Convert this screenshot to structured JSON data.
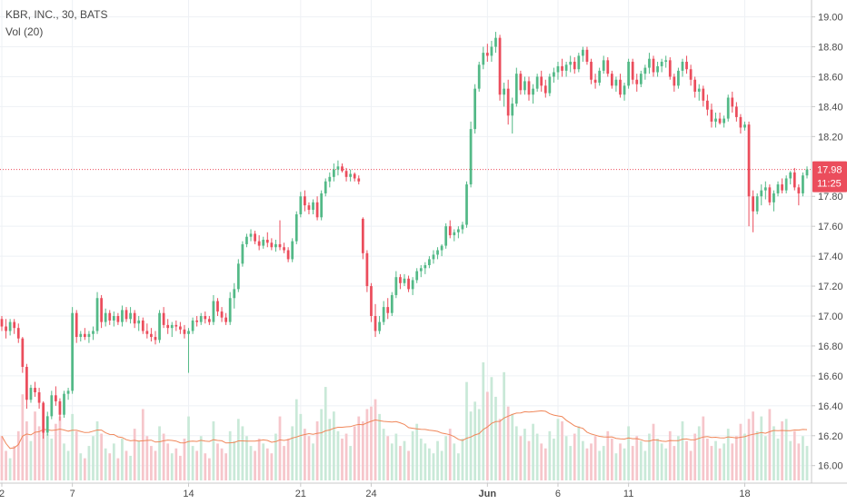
{
  "chart_data": {
    "type": "candlestick",
    "symbol_line": "KBR, INC., 30, BATS",
    "volume_label": "Vol (20)",
    "y_ticks": [
      "19.00",
      "18.80",
      "18.60",
      "18.40",
      "18.20",
      "17.80",
      "17.60",
      "17.40",
      "17.20",
      "17.00",
      "16.80",
      "16.60",
      "16.40",
      "16.20",
      "16.00"
    ],
    "ylim": [
      15.98,
      19.04
    ],
    "x_labels": [
      {
        "label": "2",
        "bar": 0
      },
      {
        "label": "7",
        "bar": 17
      },
      {
        "label": "14",
        "bar": 45
      },
      {
        "label": "21",
        "bar": 72
      },
      {
        "label": "24",
        "bar": 89
      },
      {
        "label": "Jun",
        "bar": 117
      },
      {
        "label": "6",
        "bar": 134
      },
      {
        "label": "11",
        "bar": 151
      },
      {
        "label": "18",
        "bar": 179
      }
    ],
    "last_price": {
      "value": 17.98,
      "label": "17.98",
      "countdown": "11:25"
    },
    "colors": {
      "up": "#53b987",
      "down": "#eb4d5c",
      "up_volume": "#c9e9d8",
      "down_volume": "#f6c6cb",
      "volume_ma": "#f0875a",
      "price_line": "#eb4d5c"
    },
    "ohlc": [
      [
        16.98,
        17.0,
        16.9,
        16.93
      ],
      [
        16.93,
        16.98,
        16.85,
        16.9
      ],
      [
        16.9,
        16.98,
        16.87,
        16.96
      ],
      [
        16.96,
        16.98,
        16.88,
        16.92
      ],
      [
        16.92,
        16.95,
        16.82,
        16.85
      ],
      [
        16.85,
        16.86,
        16.62,
        16.66
      ],
      [
        16.66,
        16.68,
        16.38,
        16.44
      ],
      [
        16.44,
        16.54,
        16.42,
        16.52
      ],
      [
        16.52,
        16.56,
        16.46,
        16.49
      ],
      [
        16.49,
        16.52,
        16.38,
        16.42
      ],
      [
        16.42,
        16.43,
        16.18,
        16.22
      ],
      [
        16.22,
        16.36,
        16.2,
        16.33
      ],
      [
        16.33,
        16.5,
        16.31,
        16.47
      ],
      [
        16.47,
        16.53,
        16.4,
        16.43
      ],
      [
        16.43,
        16.45,
        16.3,
        16.34
      ],
      [
        16.34,
        16.5,
        16.32,
        16.48
      ],
      [
        16.48,
        16.52,
        16.44,
        16.5
      ],
      [
        16.5,
        17.06,
        16.48,
        17.02
      ],
      [
        17.02,
        17.04,
        16.82,
        16.86
      ],
      [
        16.86,
        16.9,
        16.83,
        16.88
      ],
      [
        16.88,
        16.92,
        16.84,
        16.86
      ],
      [
        16.86,
        16.9,
        16.82,
        16.88
      ],
      [
        16.88,
        16.93,
        16.84,
        16.9
      ],
      [
        16.9,
        17.16,
        16.88,
        17.12
      ],
      [
        17.12,
        17.14,
        16.92,
        16.96
      ],
      [
        16.96,
        17.05,
        16.93,
        17.02
      ],
      [
        17.02,
        17.04,
        16.94,
        16.97
      ],
      [
        16.97,
        17.03,
        16.93,
        17.0
      ],
      [
        17.0,
        17.02,
        16.94,
        16.96
      ],
      [
        16.96,
        17.07,
        16.93,
        17.04
      ],
      [
        17.04,
        17.06,
        16.96,
        16.98
      ],
      [
        16.98,
        17.06,
        16.95,
        17.02
      ],
      [
        17.02,
        17.04,
        16.92,
        16.95
      ],
      [
        16.95,
        17.0,
        16.9,
        16.97
      ],
      [
        16.97,
        16.99,
        16.88,
        16.9
      ],
      [
        16.9,
        16.95,
        16.85,
        16.88
      ],
      [
        16.88,
        16.92,
        16.83,
        16.86
      ],
      [
        16.86,
        16.9,
        16.81,
        16.84
      ],
      [
        16.84,
        17.04,
        16.82,
        17.02
      ],
      [
        17.02,
        17.06,
        16.92,
        16.94
      ],
      [
        16.94,
        16.98,
        16.88,
        16.92
      ],
      [
        16.92,
        16.96,
        16.86,
        16.94
      ],
      [
        16.94,
        16.97,
        16.9,
        16.93
      ],
      [
        16.93,
        16.96,
        16.88,
        16.91
      ],
      [
        16.91,
        16.94,
        16.85,
        16.88
      ],
      [
        16.88,
        16.92,
        16.62,
        16.9
      ],
      [
        16.9,
        16.99,
        16.88,
        16.97
      ],
      [
        16.97,
        17.0,
        16.93,
        16.96
      ],
      [
        16.96,
        17.02,
        16.94,
        17.0
      ],
      [
        17.0,
        17.03,
        16.95,
        16.98
      ],
      [
        16.98,
        17.0,
        16.94,
        16.96
      ],
      [
        16.96,
        17.14,
        16.94,
        17.1
      ],
      [
        17.1,
        17.12,
        17.0,
        17.03
      ],
      [
        17.03,
        17.06,
        16.96,
        16.99
      ],
      [
        16.99,
        17.02,
        16.94,
        16.96
      ],
      [
        16.96,
        17.16,
        16.94,
        17.12
      ],
      [
        17.12,
        17.22,
        17.05,
        17.18
      ],
      [
        17.18,
        17.38,
        17.16,
        17.35
      ],
      [
        17.35,
        17.5,
        17.33,
        17.48
      ],
      [
        17.48,
        17.55,
        17.46,
        17.53
      ],
      [
        17.53,
        17.58,
        17.5,
        17.55
      ],
      [
        17.55,
        17.57,
        17.48,
        17.5
      ],
      [
        17.5,
        17.54,
        17.44,
        17.47
      ],
      [
        17.47,
        17.53,
        17.45,
        17.51
      ],
      [
        17.51,
        17.56,
        17.46,
        17.49
      ],
      [
        17.49,
        17.52,
        17.44,
        17.46
      ],
      [
        17.46,
        17.51,
        17.43,
        17.48
      ],
      [
        17.48,
        17.64,
        17.44,
        17.46
      ],
      [
        17.46,
        17.49,
        17.42,
        17.44
      ],
      [
        17.44,
        17.46,
        17.36,
        17.38
      ],
      [
        17.38,
        17.52,
        17.36,
        17.5
      ],
      [
        17.5,
        17.7,
        17.48,
        17.68
      ],
      [
        17.68,
        17.83,
        17.66,
        17.8
      ],
      [
        17.8,
        17.84,
        17.7,
        17.74
      ],
      [
        17.74,
        17.76,
        17.68,
        17.71
      ],
      [
        17.71,
        17.78,
        17.68,
        17.76
      ],
      [
        17.76,
        17.8,
        17.64,
        17.66
      ],
      [
        17.66,
        17.84,
        17.64,
        17.82
      ],
      [
        17.82,
        17.92,
        17.8,
        17.9
      ],
      [
        17.9,
        17.96,
        17.86,
        17.93
      ],
      [
        17.93,
        18.02,
        17.9,
        17.98
      ],
      [
        17.98,
        18.04,
        17.94,
        18.0
      ],
      [
        18.0,
        18.02,
        17.96,
        17.97
      ],
      [
        17.97,
        17.99,
        17.9,
        17.93
      ],
      [
        17.93,
        17.98,
        17.9,
        17.95
      ],
      [
        17.95,
        17.96,
        17.9,
        17.92
      ],
      [
        17.92,
        17.94,
        17.88,
        17.9
      ],
      [
        17.65,
        17.66,
        17.38,
        17.42
      ],
      [
        17.42,
        17.44,
        17.16,
        17.2
      ],
      [
        17.2,
        17.22,
        16.96,
        17.0
      ],
      [
        17.0,
        17.08,
        16.86,
        16.9
      ],
      [
        16.9,
        17.0,
        16.88,
        16.96
      ],
      [
        16.96,
        17.1,
        16.94,
        17.06
      ],
      [
        17.06,
        17.12,
        16.98,
        17.02
      ],
      [
        17.02,
        17.16,
        17.0,
        17.14
      ],
      [
        17.14,
        17.3,
        17.12,
        17.26
      ],
      [
        17.26,
        17.28,
        17.18,
        17.22
      ],
      [
        17.22,
        17.28,
        17.2,
        17.25
      ],
      [
        17.25,
        17.27,
        17.16,
        17.18
      ],
      [
        17.18,
        17.26,
        17.14,
        17.24
      ],
      [
        17.24,
        17.32,
        17.22,
        17.3
      ],
      [
        17.3,
        17.34,
        17.26,
        17.32
      ],
      [
        17.32,
        17.36,
        17.28,
        17.34
      ],
      [
        17.34,
        17.4,
        17.32,
        17.38
      ],
      [
        17.38,
        17.44,
        17.35,
        17.41
      ],
      [
        17.41,
        17.46,
        17.38,
        17.44
      ],
      [
        17.44,
        17.48,
        17.4,
        17.47
      ],
      [
        17.47,
        17.62,
        17.45,
        17.6
      ],
      [
        17.6,
        17.64,
        17.52,
        17.54
      ],
      [
        17.54,
        17.58,
        17.5,
        17.56
      ],
      [
        17.56,
        17.6,
        17.52,
        17.58
      ],
      [
        17.58,
        17.63,
        17.55,
        17.61
      ],
      [
        17.61,
        17.9,
        17.59,
        17.88
      ],
      [
        17.88,
        18.3,
        17.86,
        18.25
      ],
      [
        18.25,
        18.55,
        18.22,
        18.52
      ],
      [
        18.52,
        18.7,
        18.5,
        18.68
      ],
      [
        18.68,
        18.8,
        18.65,
        18.76
      ],
      [
        18.76,
        18.82,
        18.7,
        18.74
      ],
      [
        18.74,
        18.84,
        18.7,
        18.8
      ],
      [
        18.8,
        18.9,
        18.76,
        18.86
      ],
      [
        18.86,
        18.88,
        18.44,
        18.48
      ],
      [
        18.48,
        18.56,
        18.4,
        18.52
      ],
      [
        18.52,
        18.58,
        18.28,
        18.34
      ],
      [
        18.34,
        18.46,
        18.22,
        18.42
      ],
      [
        18.42,
        18.66,
        18.4,
        18.62
      ],
      [
        18.62,
        18.64,
        18.48,
        18.51
      ],
      [
        18.51,
        18.6,
        18.48,
        18.57
      ],
      [
        18.57,
        18.6,
        18.44,
        18.48
      ],
      [
        18.48,
        18.55,
        18.42,
        18.52
      ],
      [
        18.52,
        18.62,
        18.5,
        18.6
      ],
      [
        18.6,
        18.64,
        18.5,
        18.54
      ],
      [
        18.54,
        18.58,
        18.46,
        18.49
      ],
      [
        18.49,
        18.62,
        18.47,
        18.6
      ],
      [
        18.6,
        18.66,
        18.56,
        18.63
      ],
      [
        18.63,
        18.7,
        18.58,
        18.67
      ],
      [
        18.67,
        18.72,
        18.6,
        18.64
      ],
      [
        18.64,
        18.7,
        18.6,
        18.68
      ],
      [
        18.68,
        18.74,
        18.63,
        18.7
      ],
      [
        18.7,
        18.73,
        18.62,
        18.65
      ],
      [
        18.65,
        18.76,
        18.63,
        18.74
      ],
      [
        18.74,
        18.8,
        18.7,
        18.78
      ],
      [
        18.78,
        18.8,
        18.68,
        18.7
      ],
      [
        18.7,
        18.72,
        18.55,
        18.58
      ],
      [
        18.58,
        18.62,
        18.52,
        18.56
      ],
      [
        18.56,
        18.66,
        18.54,
        18.64
      ],
      [
        18.64,
        18.74,
        18.62,
        18.71
      ],
      [
        18.71,
        18.73,
        18.6,
        18.62
      ],
      [
        18.62,
        18.64,
        18.52,
        18.54
      ],
      [
        18.54,
        18.6,
        18.5,
        18.58
      ],
      [
        18.58,
        18.62,
        18.46,
        18.48
      ],
      [
        18.48,
        18.56,
        18.44,
        18.54
      ],
      [
        18.54,
        18.72,
        18.52,
        18.7
      ],
      [
        18.7,
        18.72,
        18.55,
        18.58
      ],
      [
        18.58,
        18.62,
        18.5,
        18.55
      ],
      [
        18.55,
        18.64,
        18.53,
        18.62
      ],
      [
        18.62,
        18.68,
        18.58,
        18.66
      ],
      [
        18.66,
        18.76,
        18.62,
        18.72
      ],
      [
        18.72,
        18.74,
        18.6,
        18.63
      ],
      [
        18.63,
        18.7,
        18.6,
        18.67
      ],
      [
        18.67,
        18.72,
        18.63,
        18.7
      ],
      [
        18.7,
        18.74,
        18.66,
        18.71
      ],
      [
        18.71,
        18.73,
        18.58,
        18.6
      ],
      [
        18.6,
        18.62,
        18.5,
        18.54
      ],
      [
        18.54,
        18.66,
        18.52,
        18.64
      ],
      [
        18.64,
        18.72,
        18.6,
        18.7
      ],
      [
        18.7,
        18.74,
        18.62,
        18.65
      ],
      [
        18.65,
        18.68,
        18.54,
        18.58
      ],
      [
        18.58,
        18.6,
        18.46,
        18.5
      ],
      [
        18.5,
        18.55,
        18.44,
        18.52
      ],
      [
        18.52,
        18.54,
        18.4,
        18.44
      ],
      [
        18.44,
        18.48,
        18.34,
        18.38
      ],
      [
        18.38,
        18.42,
        18.26,
        18.3
      ],
      [
        18.3,
        18.36,
        18.26,
        18.32
      ],
      [
        18.32,
        18.36,
        18.28,
        18.29
      ],
      [
        18.29,
        18.34,
        18.26,
        18.32
      ],
      [
        18.32,
        18.48,
        18.3,
        18.46
      ],
      [
        18.46,
        18.5,
        18.36,
        18.4
      ],
      [
        18.4,
        18.43,
        18.3,
        18.33
      ],
      [
        18.33,
        18.35,
        18.22,
        18.26
      ],
      [
        18.26,
        18.3,
        18.24,
        18.28
      ],
      [
        18.28,
        18.3,
        17.6,
        17.8
      ],
      [
        17.8,
        17.84,
        17.56,
        17.7
      ],
      [
        17.7,
        17.82,
        17.68,
        17.8
      ],
      [
        17.8,
        17.88,
        17.74,
        17.84
      ],
      [
        17.84,
        17.9,
        17.78,
        17.86
      ],
      [
        17.86,
        17.88,
        17.74,
        17.76
      ],
      [
        17.76,
        17.84,
        17.7,
        17.82
      ],
      [
        17.82,
        17.9,
        17.8,
        17.88
      ],
      [
        17.88,
        17.92,
        17.82,
        17.84
      ],
      [
        17.84,
        17.94,
        17.82,
        17.92
      ],
      [
        17.92,
        17.97,
        17.88,
        17.96
      ],
      [
        17.96,
        17.99,
        17.84,
        17.86
      ],
      [
        17.86,
        17.88,
        17.74,
        17.82
      ],
      [
        17.82,
        17.96,
        17.8,
        17.94
      ],
      [
        17.94,
        18.0,
        17.92,
        17.98
      ]
    ],
    "volume": [
      18,
      12,
      9,
      14,
      20,
      35,
      24,
      16,
      28,
      22,
      30,
      19,
      17,
      23,
      26,
      15,
      12,
      27,
      20,
      11,
      9,
      14,
      18,
      24,
      19,
      13,
      11,
      15,
      9,
      17,
      12,
      10,
      21,
      16,
      29,
      18,
      14,
      12,
      22,
      19,
      15,
      11,
      13,
      10,
      17,
      26,
      14,
      12,
      18,
      11,
      9,
      24,
      15,
      13,
      11,
      20,
      16,
      25,
      22,
      18,
      14,
      12,
      17,
      15,
      13,
      11,
      19,
      26,
      14,
      17,
      22,
      33,
      27,
      21,
      18,
      15,
      24,
      29,
      38,
      25,
      28,
      20,
      17,
      19,
      14,
      22,
      26,
      24,
      29,
      30,
      33,
      27,
      21,
      18,
      15,
      19,
      14,
      16,
      12,
      20,
      23,
      17,
      15,
      13,
      11,
      16,
      12,
      18,
      21,
      15,
      11,
      17,
      40,
      28,
      32,
      29,
      48,
      36,
      42,
      34,
      25,
      44,
      30,
      27,
      22,
      18,
      21,
      16,
      23,
      19,
      15,
      13,
      20,
      17,
      25,
      24,
      18,
      14,
      19,
      22,
      16,
      13,
      15,
      18,
      12,
      14,
      20,
      17,
      11,
      15,
      13,
      22,
      14,
      18,
      16,
      12,
      19,
      23,
      17,
      15,
      13,
      20,
      14,
      18,
      24,
      16,
      12,
      19,
      22,
      26,
      17,
      14,
      16,
      13,
      15,
      21,
      15,
      18,
      23,
      19,
      25,
      28,
      20,
      26,
      18,
      29,
      22,
      17,
      24,
      25,
      16,
      20,
      15,
      18,
      14
    ]
  }
}
